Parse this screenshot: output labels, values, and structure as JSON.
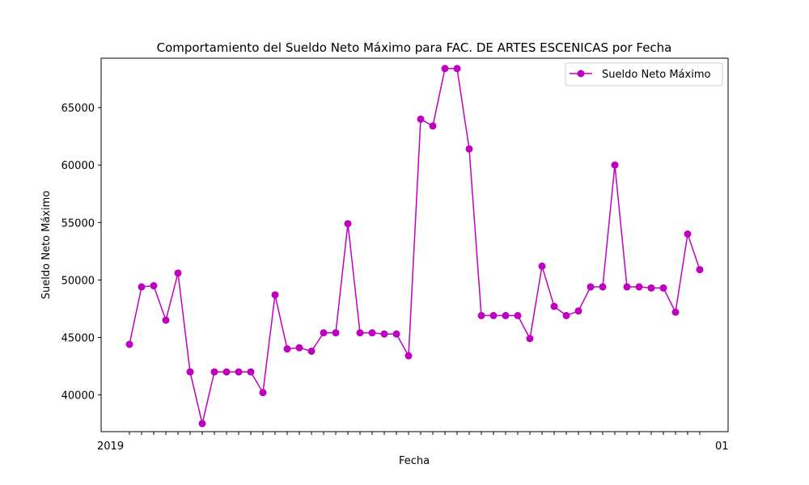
{
  "chart_data": {
    "type": "line",
    "title": "Comportamiento del Sueldo Neto Máximo para FAC. DE ARTES ESCENICAS por Fecha",
    "xlabel": "Fecha",
    "ylabel": "Sueldo Neto Máximo",
    "ylim": [
      36800,
      69300
    ],
    "yticks": [
      40000,
      45000,
      50000,
      55000,
      60000,
      65000
    ],
    "grid": false,
    "legend_position": "top-right",
    "line_color": "#bf00bf",
    "x_tick_label_start": "2019",
    "x_tick_label_end": "01",
    "series": [
      {
        "name": "Sueldo Neto Máximo",
        "values": [
          44400,
          49400,
          49500,
          46500,
          50600,
          42000,
          37500,
          42000,
          42000,
          42000,
          42000,
          40200,
          48700,
          44000,
          44100,
          43800,
          45400,
          45400,
          54900,
          45400,
          45400,
          45300,
          45300,
          43400,
          64000,
          63400,
          68400,
          68400,
          61400,
          46900,
          46900,
          46900,
          46900,
          44900,
          51200,
          47700,
          46900,
          47300,
          49400,
          49400,
          60000,
          49400,
          49400,
          49300,
          49300,
          47200,
          54000,
          50900
        ]
      }
    ]
  }
}
